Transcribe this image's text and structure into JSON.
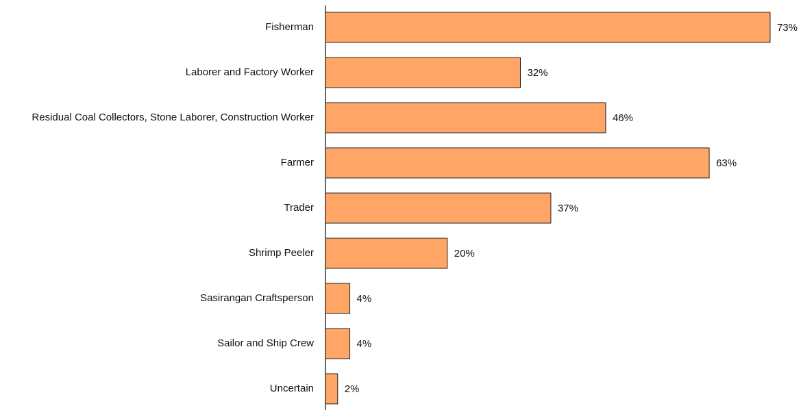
{
  "chart_data": {
    "type": "bar",
    "orientation": "horizontal",
    "categories": [
      "Fisherman",
      "Laborer and Factory Worker",
      "Residual Coal Collectors, Stone Laborer, Construction Worker",
      "Farmer",
      "Trader",
      "Shrimp Peeler",
      "Sasirangan Craftsperson",
      "Sailor and Ship Crew",
      "Uncertain"
    ],
    "values": [
      73,
      32,
      46,
      63,
      37,
      20,
      4,
      4,
      2
    ],
    "value_labels": [
      "73%",
      "32%",
      "46%",
      "63%",
      "37%",
      "20%",
      "4%",
      "4%",
      "2%"
    ],
    "color": "#ffa666"
  }
}
